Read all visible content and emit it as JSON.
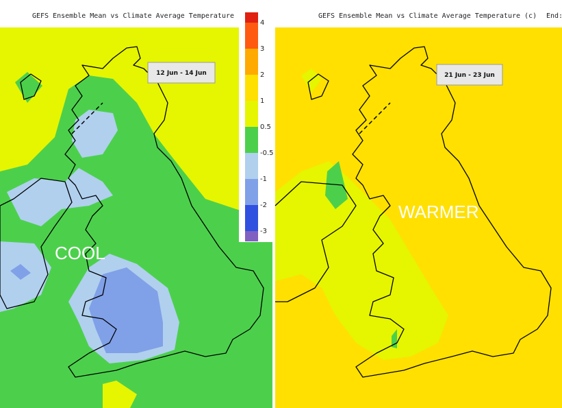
{
  "header": {
    "left_title": "GEFS Ensemble Mean vs Climate Average Temperature (c)",
    "right_title": "GEFS Ensemble Mean vs Climate Average Temperature (c)",
    "right_end": "End:"
  },
  "panels": [
    {
      "date_label": "12 Jun - 14 Jun",
      "annotation": "COOL"
    },
    {
      "date_label": "21 Jun - 23 Jun",
      "annotation": "WARMER"
    }
  ],
  "colorbar": {
    "labels": [
      "4",
      "3",
      "2",
      "1",
      "0.5",
      "-0.5",
      "-1",
      "-2",
      "-3"
    ]
  }
}
